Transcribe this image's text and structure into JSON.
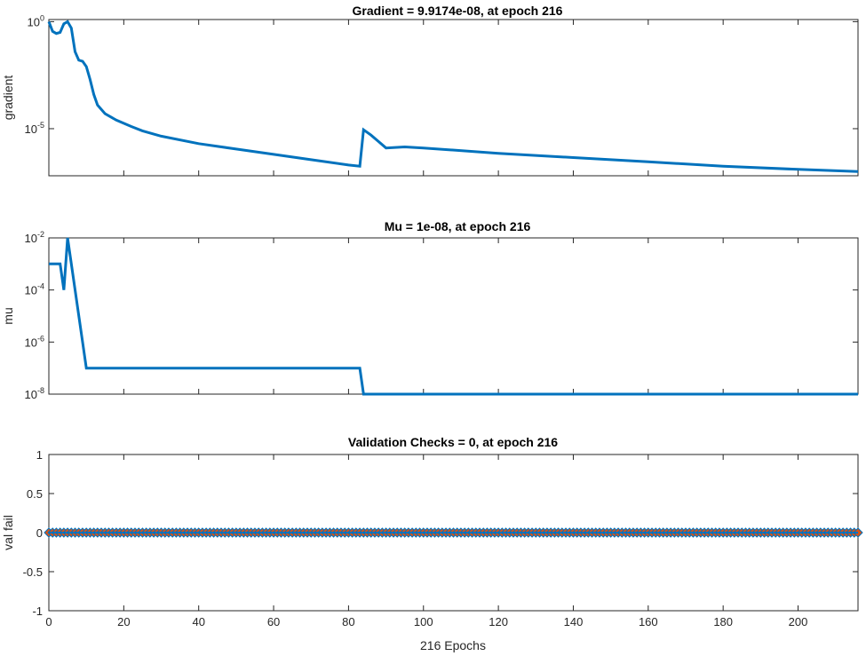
{
  "colors": {
    "line": "#0072BD",
    "marker_face": "#D95319",
    "axes": "#262626",
    "background": "#ffffff"
  },
  "chart_data": [
    {
      "type": "line",
      "title": "Gradient = 9.9174e-08, at epoch 216",
      "ylabel": "gradient",
      "yscale": "log",
      "xlim": [
        0,
        216
      ],
      "ylim_log10": [
        -7.2,
        0.1
      ],
      "yticks": [
        {
          "base": "10",
          "exp": "0",
          "value": 0
        },
        {
          "base": "10",
          "exp": "-5",
          "value": -5
        }
      ],
      "series": [
        {
          "name": "gradient",
          "x": [
            0,
            1,
            2,
            3,
            4,
            5,
            6,
            7,
            8,
            9,
            10,
            11,
            12,
            13,
            15,
            18,
            22,
            25,
            30,
            40,
            50,
            60,
            70,
            80,
            83,
            84,
            86,
            88,
            90,
            95,
            100,
            120,
            140,
            160,
            180,
            200,
            216
          ],
          "log10": [
            0,
            -0.45,
            -0.55,
            -0.5,
            -0.1,
            0,
            -0.3,
            -1.4,
            -1.8,
            -1.85,
            -2.1,
            -2.7,
            -3.4,
            -3.9,
            -4.3,
            -4.6,
            -4.9,
            -5.1,
            -5.35,
            -5.7,
            -5.95,
            -6.2,
            -6.45,
            -6.7,
            -6.75,
            -5.05,
            -5.3,
            -5.6,
            -5.9,
            -5.85,
            -5.9,
            -6.15,
            -6.35,
            -6.55,
            -6.75,
            -6.9,
            -7.0
          ]
        }
      ]
    },
    {
      "type": "line",
      "title": "Mu = 1e-08, at epoch 216",
      "ylabel": "mu",
      "yscale": "log",
      "xlim": [
        0,
        216
      ],
      "ylim_log10": [
        -8,
        -2
      ],
      "yticks": [
        {
          "base": "10",
          "exp": "-2",
          "value": -2
        },
        {
          "base": "10",
          "exp": "-4",
          "value": -4
        },
        {
          "base": "10",
          "exp": "-6",
          "value": -6
        },
        {
          "base": "10",
          "exp": "-8",
          "value": -8
        }
      ],
      "series": [
        {
          "name": "mu",
          "x": [
            0,
            3,
            4,
            5,
            10,
            83,
            84,
            216
          ],
          "log10": [
            -3,
            -3,
            -4,
            -2,
            -7,
            -7,
            -8,
            -8
          ]
        }
      ]
    },
    {
      "type": "line",
      "title": "Validation Checks = 0, at epoch 216",
      "ylabel": "val fail",
      "xlabel": "216 Epochs",
      "xlim": [
        0,
        216
      ],
      "ylim": [
        -1,
        1
      ],
      "yticks": [
        "-1",
        "-0.5",
        "0",
        "0.5",
        "1"
      ],
      "xticks": [
        "0",
        "20",
        "40",
        "60",
        "80",
        "100",
        "120",
        "140",
        "160",
        "180",
        "200"
      ],
      "markers": "diamond",
      "series": [
        {
          "name": "val fail",
          "x_start": 0,
          "x_end": 216,
          "value": 0
        }
      ]
    }
  ]
}
